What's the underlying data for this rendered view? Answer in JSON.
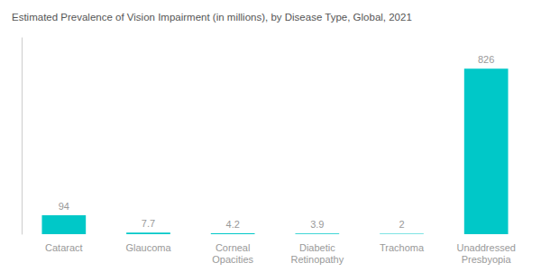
{
  "chart_data": {
    "type": "bar",
    "title": "Estimated Prevalence of Vision Impairment (in millions), by Disease Type, Global, 2021",
    "categories": [
      "Cataract",
      "Glaucoma",
      "Corneal\nOpacities",
      "Diabetic\nRetinopathy",
      "Trachoma",
      "Unaddressed\nPresbyopia"
    ],
    "values": [
      94,
      7.7,
      4.2,
      3.9,
      2,
      826
    ],
    "color": "#00C8C8",
    "ylim": [
      0,
      980
    ],
    "grid": false,
    "data_labels": true,
    "tick_labels": "x"
  }
}
